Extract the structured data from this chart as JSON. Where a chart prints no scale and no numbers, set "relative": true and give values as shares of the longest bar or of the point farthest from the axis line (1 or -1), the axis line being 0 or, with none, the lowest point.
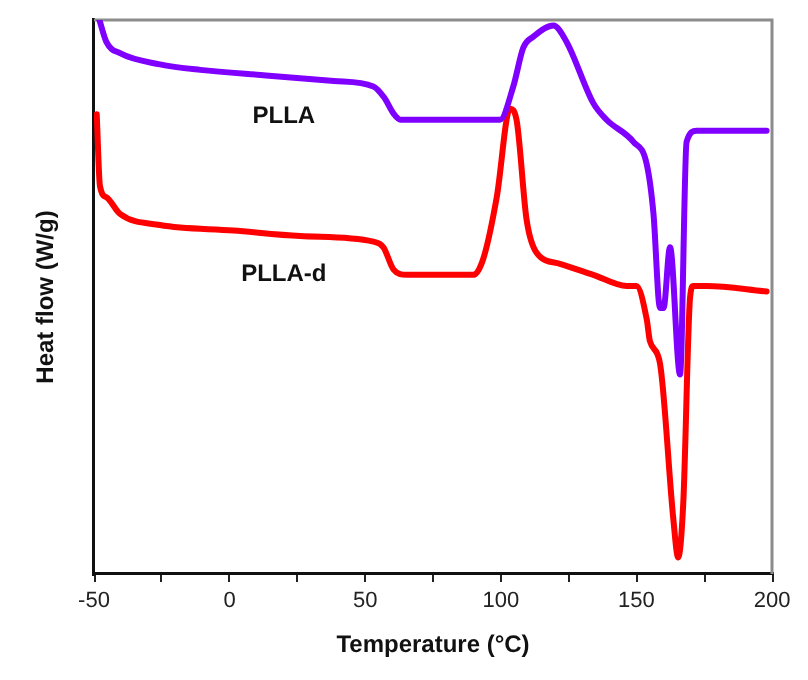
{
  "chart_data": {
    "type": "line",
    "xlabel": "Temperature (°C)",
    "ylabel": "Heat flow (W/g)",
    "relative": true,
    "tick_labels": "x",
    "xlim": [
      -50,
      200
    ],
    "xticks": [
      -50,
      {
        "value": -25,
        "label": null
      },
      0,
      {
        "value": 25,
        "label": null
      },
      50,
      {
        "value": 75,
        "label": null
      },
      100,
      {
        "value": 125,
        "label": null
      },
      150,
      {
        "value": 175,
        "label": null
      },
      200
    ],
    "series": [
      {
        "name": "PLLA",
        "color": "#8000ff",
        "x": [
          -48,
          -45.4,
          -40.4,
          -25.7,
          -10.9,
          13.4,
          38.5,
          53,
          57,
          60.6,
          63,
          70,
          92,
          99.7,
          104.6,
          108.3,
          112,
          119.4,
          124.3,
          134.1,
          139,
          148.9,
          153.8,
          156.3,
          158.7,
          160,
          162.4,
          166.1,
          168.5,
          172.2,
          198
        ],
        "values": [
          1.0,
          0.96,
          0.94,
          0.92,
          0.91,
          0.9,
          0.89,
          0.88,
          0.86,
          0.83,
          0.82,
          0.82,
          0.82,
          0.82,
          0.88,
          0.95,
          0.97,
          0.99,
          0.96,
          0.85,
          0.82,
          0.78,
          0.74,
          0.65,
          0.48,
          0.48,
          0.59,
          0.36,
          0.78,
          0.8,
          0.8
        ]
      },
      {
        "name": "PLLA-d",
        "color": "#ff0000",
        "x": [
          -49,
          -47.8,
          -45.4,
          -40.4,
          -25.7,
          1.4,
          26,
          53,
          56.7,
          60.4,
          65.3,
          70.2,
          89.9,
          93.6,
          98.5,
          103.4,
          105.8,
          109.5,
          113.2,
          121.8,
          134.1,
          146.4,
          150,
          153.8,
          155,
          158.7,
          163.6,
          165.4,
          167.3,
          169.8,
          171,
          175.9,
          198
        ],
        "values": [
          0.83,
          0.7,
          0.68,
          0.65,
          0.63,
          0.62,
          0.61,
          0.6,
          0.59,
          0.55,
          0.54,
          0.54,
          0.54,
          0.57,
          0.68,
          0.84,
          0.82,
          0.64,
          0.58,
          0.56,
          0.54,
          0.52,
          0.52,
          0.46,
          0.42,
          0.38,
          0.1,
          0.03,
          0.13,
          0.5,
          0.52,
          0.52,
          0.51
        ]
      }
    ]
  }
}
